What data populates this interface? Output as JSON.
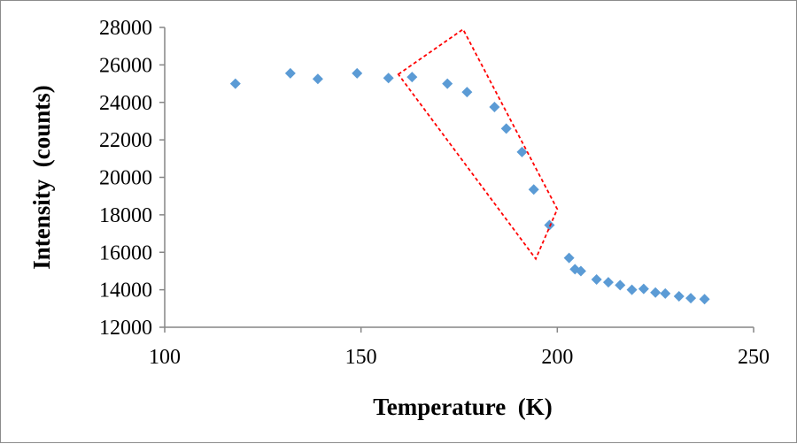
{
  "chart_data": {
    "type": "scatter",
    "title": "",
    "xlabel": "Temperature  (K)",
    "ylabel": "Intensity  (counts)",
    "xlim": [
      100,
      250
    ],
    "ylim": [
      12000,
      28000
    ],
    "xticks": [
      100,
      150,
      200,
      250
    ],
    "yticks": [
      12000,
      14000,
      16000,
      18000,
      20000,
      22000,
      24000,
      26000,
      28000
    ],
    "grid": false,
    "legend": "none",
    "marker": "diamond",
    "colors": {
      "marker": "#5b9bd5",
      "highlight": "#ff0000",
      "axis": "#868686"
    },
    "series": [
      {
        "name": "Intensity",
        "x": [
          118,
          132,
          139,
          149,
          157,
          163,
          172,
          177,
          184,
          187,
          191,
          194,
          198,
          203,
          204.5,
          206,
          210,
          213,
          216,
          219,
          222,
          225,
          227.5,
          231,
          234,
          237.5
        ],
        "y": [
          25000,
          25550,
          25250,
          25550,
          25300,
          25350,
          25000,
          24550,
          23750,
          22600,
          21350,
          19350,
          17450,
          15700,
          15100,
          15000,
          14550,
          14400,
          14250,
          14000,
          14050,
          13850,
          13800,
          13650,
          13550,
          13500
        ]
      }
    ],
    "annotations": [
      {
        "type": "dashed-rectangle",
        "description": "highlight of steep drop region",
        "corners_data": [
          [
            159.5,
            25500
          ],
          [
            176,
            27900
          ],
          [
            200,
            18300
          ],
          [
            194.5,
            15650
          ]
        ]
      }
    ]
  }
}
